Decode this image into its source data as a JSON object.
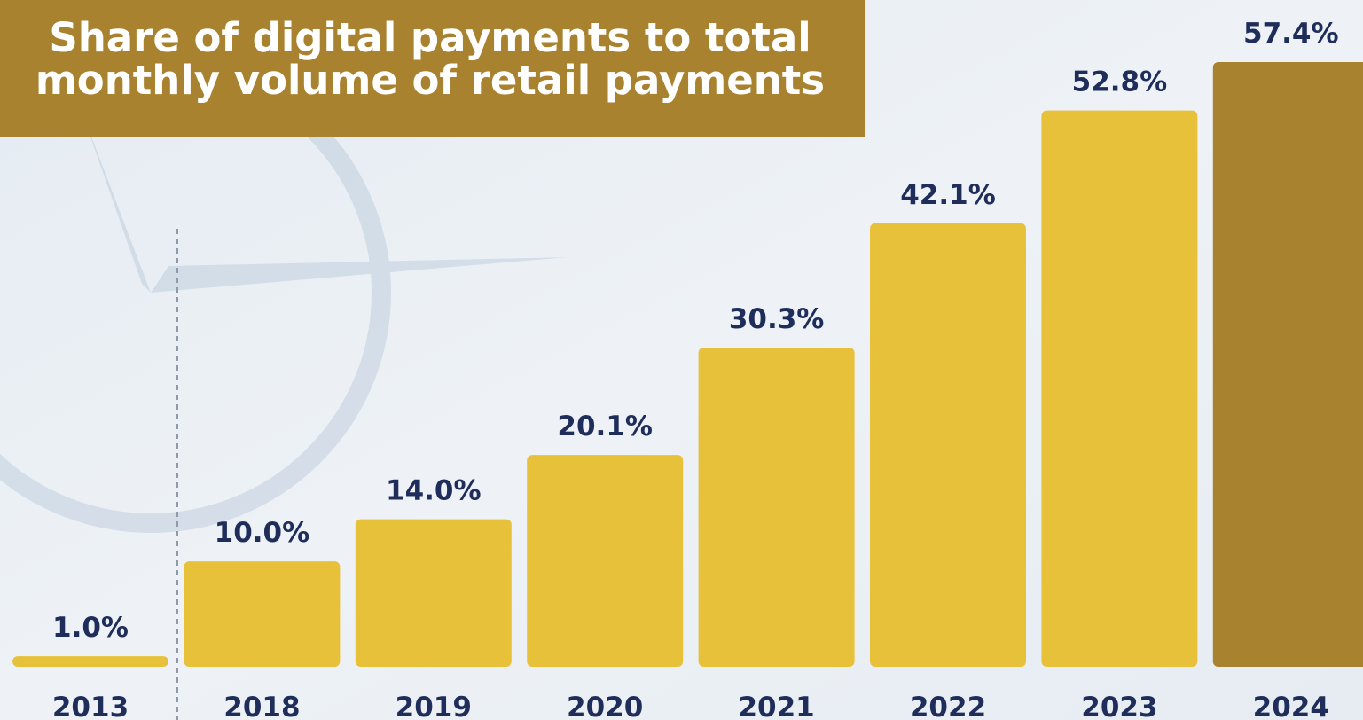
{
  "chart_data": {
    "type": "bar",
    "title": [
      "Share of digital payments to total",
      "monthly volume of retail payments"
    ],
    "categories": [
      "2013",
      "2018",
      "2019",
      "2020",
      "2021",
      "2022",
      "2023",
      "2024"
    ],
    "values": [
      1.0,
      10.0,
      14.0,
      20.1,
      30.3,
      42.1,
      52.8,
      57.4
    ],
    "value_labels": [
      "1.0%",
      "10.0%",
      "14.0%",
      "20.1%",
      "30.3%",
      "42.1%",
      "52.8%",
      "57.4%"
    ],
    "colors": [
      "#e8c13a",
      "#e8c13a",
      "#e8c13a",
      "#e8c13a",
      "#e8c13a",
      "#e8c13a",
      "#e8c13a",
      "#a8822e"
    ]
  }
}
